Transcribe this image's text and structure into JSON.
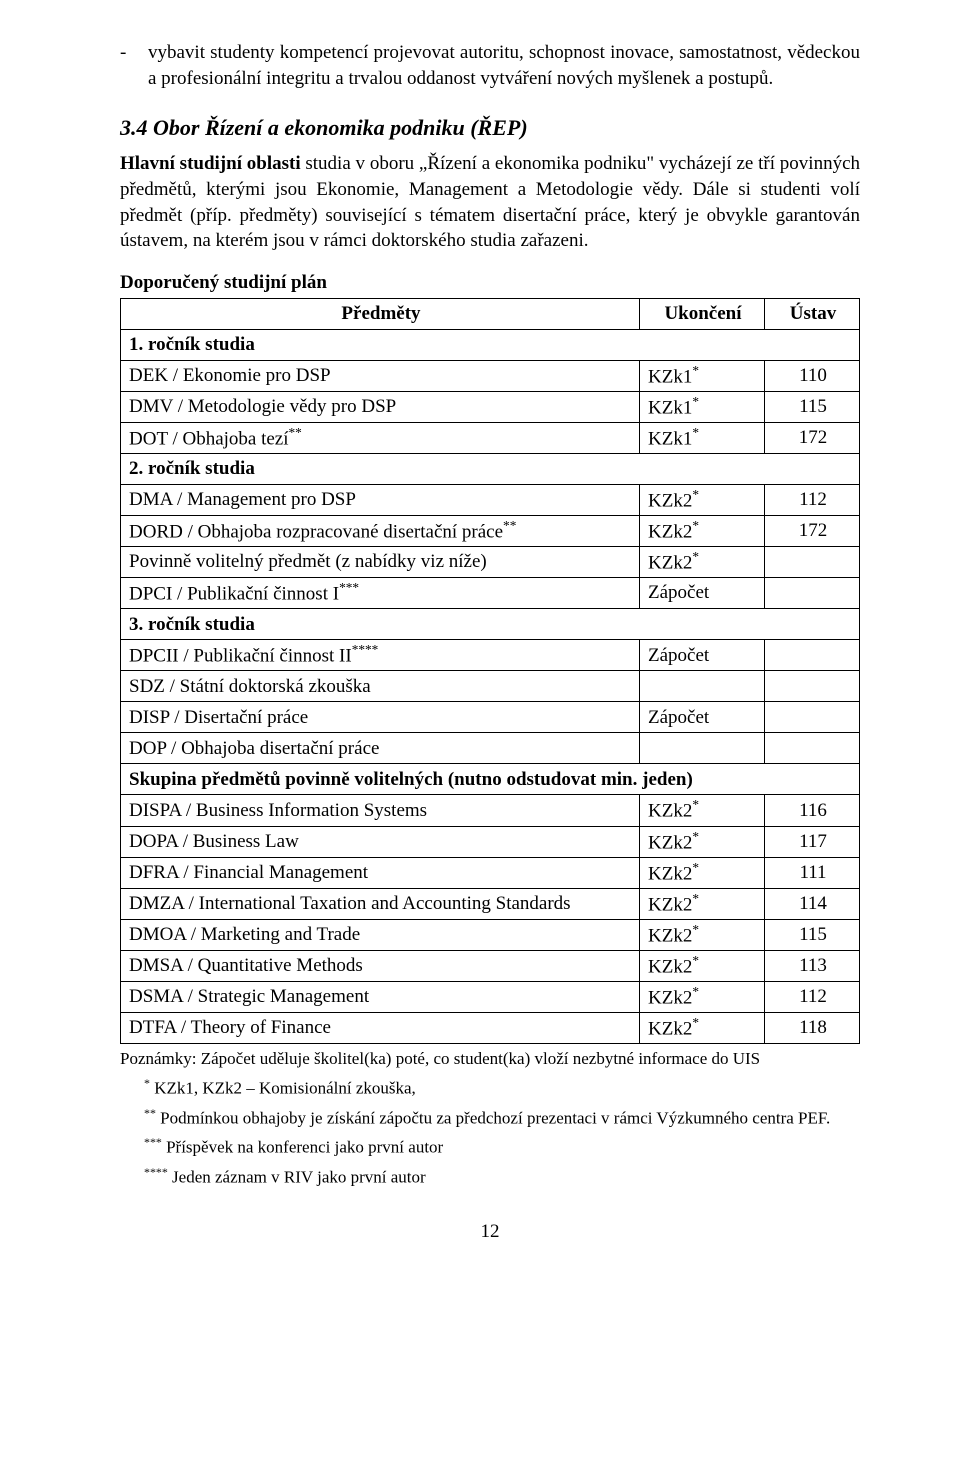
{
  "bullet": {
    "dash": "-",
    "text": "vybavit studenty kompetencí projevovat autoritu, schopnost inovace, samostatnost, vědeckou a profesionální integritu a trvalou oddanost vytváření nových myšlenek a postupů."
  },
  "heading": "3.4  Obor Řízení a ekonomika podniku (ŘEP)",
  "intro": "Hlavní studijní oblasti studia v oboru „Řízení a ekonomika podniku\" vycházejí ze tří povinných předmětů, kterými jsou Ekonomie, Management a Metodologie vědy. Dále si studenti volí předmět (příp. předměty) související s tématem disertační práce, který je obvykle garantován ústavem, na kterém jsou v rámci doktorského studia zařazeni.",
  "intro_bold_lead": "Hlavní studijní oblasti",
  "intro_rest": " studia v oboru „Řízení a ekonomika podniku\" vycházejí ze tří povinných předmětů, kterými jsou Ekonomie, Management a Metodologie vědy. Dále si studenti volí předmět (příp. předměty) související s tématem disertační práce, který je obvykle garantován ústavem, na kterém jsou v rámci doktorského studia zařazeni.",
  "plan_title": "Doporučený studijní plán",
  "headers": {
    "predmety": "Předměty",
    "ukonceni": "Ukončení",
    "ustav": "Ústav"
  },
  "sections": {
    "y1": "1. ročník studia",
    "y2": "2. ročník studia",
    "y3": "3. ročník studia",
    "elect": "Skupina předmětů povinně volitelných (nutno odstudovat min. jeden)"
  },
  "rows": {
    "dek": {
      "name": "DEK / Ekonomie pro DSP",
      "uk": "KZk1",
      "sup": "*",
      "ustav": "110"
    },
    "dmv": {
      "name": "DMV / Metodologie vědy pro DSP",
      "uk": "KZk1",
      "sup": "*",
      "ustav": "115"
    },
    "dot": {
      "name": "DOT / Obhajoba tezí",
      "name_sup": "**",
      "uk": "KZk1",
      "sup": "*",
      "ustav": "172"
    },
    "dma": {
      "name": "DMA / Management pro DSP",
      "uk": "KZk2",
      "sup": "*",
      "ustav": "112"
    },
    "dord": {
      "name": "DORD / Obhajoba rozpracované disertační práce",
      "name_sup": "**",
      "uk": "KZk2",
      "sup": "*",
      "ustav": "172"
    },
    "pvol": {
      "name": "Povinně volitelný předmět (z nabídky viz níže)",
      "uk": "KZk2",
      "sup": "*",
      "ustav": ""
    },
    "dpci": {
      "name": "DPCI / Publikační činnost I",
      "name_sup": "***",
      "uk": "Zápočet",
      "sup": "",
      "ustav": ""
    },
    "dpcii": {
      "name": "DPCII / Publikační činnost II",
      "name_sup": "****",
      "uk": "Zápočet",
      "sup": "",
      "ustav": ""
    },
    "sdz": {
      "name": "SDZ / Státní doktorská zkouška",
      "uk": "",
      "sup": "",
      "ustav": ""
    },
    "disp": {
      "name": "DISP / Disertační práce",
      "uk": "Zápočet",
      "sup": "",
      "ustav": ""
    },
    "dop": {
      "name": "DOP / Obhajoba disertační práce",
      "uk": "",
      "sup": "",
      "ustav": ""
    },
    "dispa": {
      "name": "DISPA / Business Information Systems",
      "uk": "KZk2",
      "sup": "*",
      "ustav": "116"
    },
    "dopa": {
      "name": "DOPA / Business Law",
      "uk": "KZk2",
      "sup": "*",
      "ustav": "117"
    },
    "dfra": {
      "name": "DFRA / Financial Management",
      "uk": "KZk2",
      "sup": "*",
      "ustav": "111"
    },
    "dmza": {
      "name": "DMZA / International Taxation and Accounting Standards",
      "uk": "KZk2",
      "sup": "*",
      "ustav": "114"
    },
    "dmoa": {
      "name": "DMOA / Marketing and Trade",
      "uk": "KZk2",
      "sup": "*",
      "ustav": "115"
    },
    "dmsa": {
      "name": "DMSA / Quantitative Methods",
      "uk": "KZk2",
      "sup": "*",
      "ustav": "113"
    },
    "dsma": {
      "name": "DSMA / Strategic Management",
      "uk": "KZk2",
      "sup": "*",
      "ustav": "112"
    },
    "dtfa": {
      "name": "DTFA / Theory of Finance",
      "uk": "KZk2",
      "sup": "*",
      "ustav": "118"
    }
  },
  "notes": {
    "lead": "Poznámky: Zápočet uděluje školitel(ka) poté, co student(ka) vloží nezbytné informace do UIS",
    "n1_mark": "*",
    "n1": " KZk1, KZk2 – Komisionální zkouška,",
    "n2_mark": "**",
    "n2": " Podmínkou obhajoby je získání zápočtu za předchozí prezentaci v rámci Výzkumného centra PEF.",
    "n3_mark": "***",
    "n3": " Příspěvek na konferenci jako první autor",
    "n4_mark": "****",
    "n4": " Jeden záznam v RIV jako první autor"
  },
  "pagenum": "12"
}
